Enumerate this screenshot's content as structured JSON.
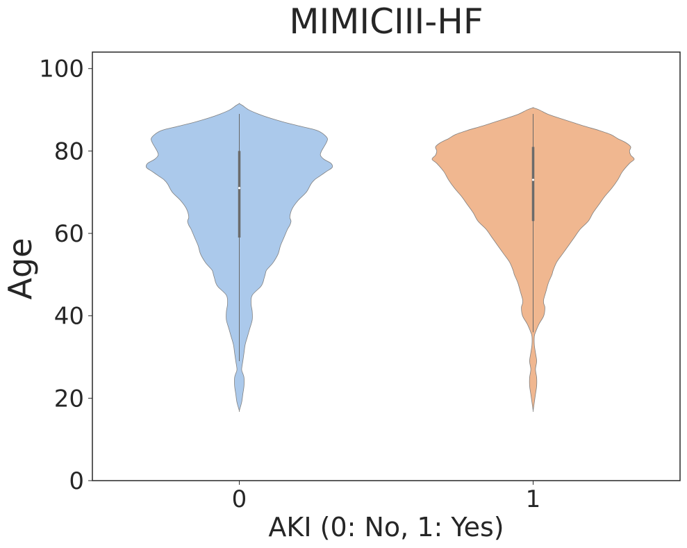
{
  "chart_data": {
    "type": "violin",
    "title": "MIMICIII-HF",
    "xlabel": "AKI (0: No, 1: Yes)",
    "ylabel": "Age",
    "ylim": [
      0,
      104
    ],
    "yticks": [
      0,
      20,
      40,
      60,
      80,
      100
    ],
    "categories": [
      "0",
      "1"
    ],
    "grid": false,
    "legend": "none",
    "series": [
      {
        "category": "0",
        "color": "#abc9eb",
        "min": 17,
        "max": 91.5,
        "whisker_low": 29,
        "whisker_high": 89,
        "q1": 59,
        "median": 71,
        "q3": 80,
        "density_profile": [
          [
            17,
            0.0
          ],
          [
            19,
            0.02
          ],
          [
            21,
            0.03
          ],
          [
            23,
            0.04
          ],
          [
            25,
            0.04
          ],
          [
            26,
            0.03
          ],
          [
            27,
            0.02
          ],
          [
            29,
            0.03
          ],
          [
            31,
            0.04
          ],
          [
            33,
            0.05
          ],
          [
            35,
            0.07
          ],
          [
            37,
            0.09
          ],
          [
            39,
            0.11
          ],
          [
            41,
            0.11
          ],
          [
            43,
            0.1
          ],
          [
            45,
            0.11
          ],
          [
            47,
            0.18
          ],
          [
            48,
            0.2
          ],
          [
            49,
            0.21
          ],
          [
            50,
            0.22
          ],
          [
            51,
            0.23
          ],
          [
            52,
            0.26
          ],
          [
            53,
            0.29
          ],
          [
            55,
            0.33
          ],
          [
            57,
            0.35
          ],
          [
            59,
            0.38
          ],
          [
            61,
            0.41
          ],
          [
            62,
            0.43
          ],
          [
            63,
            0.44
          ],
          [
            64,
            0.43
          ],
          [
            66,
            0.45
          ],
          [
            68,
            0.5
          ],
          [
            70,
            0.57
          ],
          [
            72,
            0.61
          ],
          [
            73,
            0.64
          ],
          [
            74,
            0.69
          ],
          [
            75,
            0.74
          ],
          [
            76,
            0.79
          ],
          [
            77,
            0.78
          ],
          [
            78,
            0.72
          ],
          [
            79,
            0.69
          ],
          [
            80,
            0.7
          ],
          [
            81,
            0.72
          ],
          [
            82,
            0.74
          ],
          [
            83,
            0.75
          ],
          [
            84,
            0.72
          ],
          [
            85,
            0.66
          ],
          [
            86,
            0.52
          ],
          [
            87,
            0.38
          ],
          [
            88,
            0.26
          ],
          [
            89,
            0.16
          ],
          [
            90,
            0.08
          ],
          [
            91,
            0.03
          ],
          [
            91.5,
            0.0
          ]
        ]
      },
      {
        "category": "1",
        "color": "#f0b790",
        "min": 17,
        "max": 90.5,
        "whisker_low": 36,
        "whisker_high": 89,
        "q1": 63,
        "median": 73,
        "q3": 81,
        "density_profile": [
          [
            17,
            0.0
          ],
          [
            19,
            0.01
          ],
          [
            21,
            0.02
          ],
          [
            23,
            0.03
          ],
          [
            25,
            0.03
          ],
          [
            27,
            0.02
          ],
          [
            29,
            0.03
          ],
          [
            31,
            0.02
          ],
          [
            33,
            0.01
          ],
          [
            35,
            0.01
          ],
          [
            36,
            0.02
          ],
          [
            38,
            0.05
          ],
          [
            40,
            0.09
          ],
          [
            42,
            0.1
          ],
          [
            43,
            0.09
          ],
          [
            44,
            0.09
          ],
          [
            46,
            0.11
          ],
          [
            48,
            0.13
          ],
          [
            50,
            0.16
          ],
          [
            51,
            0.17
          ],
          [
            53,
            0.2
          ],
          [
            55,
            0.25
          ],
          [
            57,
            0.3
          ],
          [
            59,
            0.35
          ],
          [
            61,
            0.4
          ],
          [
            63,
            0.47
          ],
          [
            65,
            0.51
          ],
          [
            67,
            0.56
          ],
          [
            69,
            0.61
          ],
          [
            71,
            0.67
          ],
          [
            73,
            0.72
          ],
          [
            75,
            0.76
          ],
          [
            77,
            0.82
          ],
          [
            78,
            0.86
          ],
          [
            79,
            0.83
          ],
          [
            80,
            0.82
          ],
          [
            81,
            0.83
          ],
          [
            82,
            0.79
          ],
          [
            83,
            0.72
          ],
          [
            84,
            0.66
          ],
          [
            85,
            0.56
          ],
          [
            86,
            0.44
          ],
          [
            87,
            0.33
          ],
          [
            88,
            0.22
          ],
          [
            89,
            0.12
          ],
          [
            90,
            0.05
          ],
          [
            90.5,
            0.0
          ]
        ]
      }
    ]
  }
}
